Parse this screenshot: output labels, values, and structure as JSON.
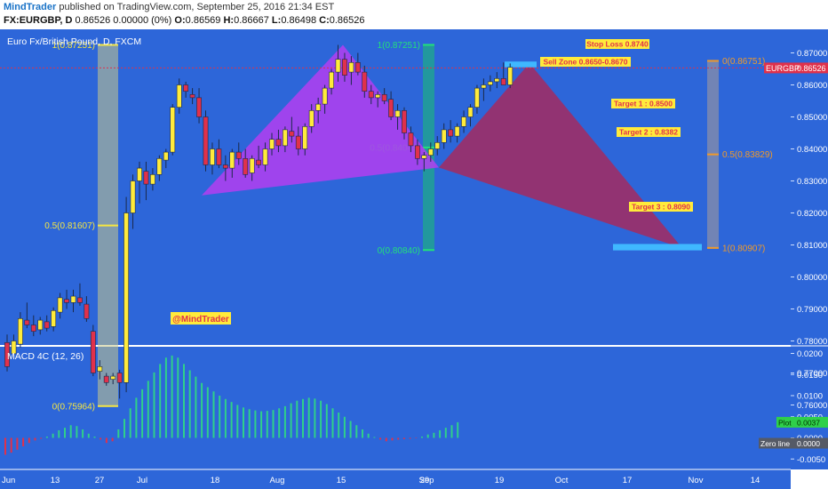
{
  "header": {
    "author": "MindTrader",
    "published": "published on TradingView.com, September 25, 2016 21:34 EST",
    "symbol": "FX:EURGBP, D",
    "quote": "0.86526 0.00000 (0%)",
    "ohlc": {
      "o_label": "O:",
      "o": "0.86569",
      "h_label": "H:",
      "h": "0.86667",
      "l_label": "L:",
      "l": "0.86498",
      "c_label": "C:",
      "c": "0.86526"
    }
  },
  "colors": {
    "background": "#2d66d9",
    "candle_up": "#ffeb3b",
    "candle_down": "#e0314b",
    "fib_left": "#f5e642",
    "fib_mid": "#22e07a",
    "fib_right": "#f09a2a",
    "harmonic_left": "#b43ef0",
    "harmonic_right": "#a52a5f",
    "macd_up": "#2fd08a",
    "macd_down": "#e0314b",
    "label_box": "#ffeb3b",
    "label_text": "#e0314b",
    "price_tag": "#e0314b"
  },
  "icons": [
    "no-icons"
  ],
  "chart_data": [
    {
      "type": "candlestick",
      "title": "Euro Fx/British Pound, D, FXCM",
      "symbol_tag": "EURGBP",
      "last_price": "0.86526",
      "ylim": [
        0.755,
        0.876
      ],
      "y_ticks": [
        "0.87000",
        "0.86000",
        "0.85000",
        "0.84000",
        "0.83000",
        "0.82000",
        "0.81000",
        "0.80000",
        "0.79000",
        "0.78000",
        "0.77000",
        "0.76000"
      ],
      "x_ticks": [
        "Jun",
        "13",
        "27",
        "Jul",
        "18",
        "Aug",
        "15",
        "29",
        "Sep",
        "19",
        "Oct",
        "17",
        "Nov",
        "14"
      ],
      "candles": [
        {
          "o": 0.7795,
          "h": 0.782,
          "l": 0.7705,
          "c": 0.772
        },
        {
          "o": 0.776,
          "h": 0.782,
          "l": 0.7745,
          "c": 0.78
        },
        {
          "o": 0.779,
          "h": 0.789,
          "l": 0.778,
          "c": 0.787
        },
        {
          "o": 0.7865,
          "h": 0.792,
          "l": 0.784,
          "c": 0.785
        },
        {
          "o": 0.785,
          "h": 0.788,
          "l": 0.7815,
          "c": 0.783
        },
        {
          "o": 0.7835,
          "h": 0.7875,
          "l": 0.782,
          "c": 0.7865
        },
        {
          "o": 0.786,
          "h": 0.788,
          "l": 0.783,
          "c": 0.784
        },
        {
          "o": 0.7845,
          "h": 0.7905,
          "l": 0.783,
          "c": 0.7895
        },
        {
          "o": 0.789,
          "h": 0.795,
          "l": 0.787,
          "c": 0.7935
        },
        {
          "o": 0.793,
          "h": 0.796,
          "l": 0.79,
          "c": 0.792
        },
        {
          "o": 0.792,
          "h": 0.796,
          "l": 0.789,
          "c": 0.794
        },
        {
          "o": 0.7935,
          "h": 0.798,
          "l": 0.791,
          "c": 0.792
        },
        {
          "o": 0.7915,
          "h": 0.794,
          "l": 0.786,
          "c": 0.787
        },
        {
          "o": 0.783,
          "h": 0.785,
          "l": 0.769,
          "c": 0.77
        },
        {
          "o": 0.7705,
          "h": 0.774,
          "l": 0.768,
          "c": 0.772
        },
        {
          "o": 0.769,
          "h": 0.77,
          "l": 0.766,
          "c": 0.767
        },
        {
          "o": 0.768,
          "h": 0.77,
          "l": 0.7665,
          "c": 0.769
        },
        {
          "o": 0.77,
          "h": 0.771,
          "l": 0.762,
          "c": 0.767
        },
        {
          "o": 0.767,
          "h": 0.825,
          "l": 0.764,
          "c": 0.82
        },
        {
          "o": 0.82,
          "h": 0.832,
          "l": 0.815,
          "c": 0.83
        },
        {
          "o": 0.83,
          "h": 0.836,
          "l": 0.823,
          "c": 0.834
        },
        {
          "o": 0.833,
          "h": 0.836,
          "l": 0.824,
          "c": 0.829
        },
        {
          "o": 0.829,
          "h": 0.834,
          "l": 0.827,
          "c": 0.832
        },
        {
          "o": 0.832,
          "h": 0.838,
          "l": 0.83,
          "c": 0.837
        },
        {
          "o": 0.8365,
          "h": 0.84,
          "l": 0.834,
          "c": 0.839
        },
        {
          "o": 0.839,
          "h": 0.854,
          "l": 0.838,
          "c": 0.853
        },
        {
          "o": 0.853,
          "h": 0.862,
          "l": 0.851,
          "c": 0.86
        },
        {
          "o": 0.86,
          "h": 0.861,
          "l": 0.856,
          "c": 0.858
        },
        {
          "o": 0.857,
          "h": 0.859,
          "l": 0.854,
          "c": 0.856
        },
        {
          "o": 0.856,
          "h": 0.859,
          "l": 0.848,
          "c": 0.85
        },
        {
          "o": 0.85,
          "h": 0.852,
          "l": 0.833,
          "c": 0.835
        },
        {
          "o": 0.835,
          "h": 0.842,
          "l": 0.832,
          "c": 0.84
        },
        {
          "o": 0.84,
          "h": 0.843,
          "l": 0.834,
          "c": 0.835
        },
        {
          "o": 0.835,
          "h": 0.838,
          "l": 0.83,
          "c": 0.834
        },
        {
          "o": 0.834,
          "h": 0.84,
          "l": 0.831,
          "c": 0.839
        },
        {
          "o": 0.839,
          "h": 0.842,
          "l": 0.835,
          "c": 0.837
        },
        {
          "o": 0.837,
          "h": 0.84,
          "l": 0.831,
          "c": 0.832
        },
        {
          "o": 0.8325,
          "h": 0.838,
          "l": 0.83,
          "c": 0.837
        },
        {
          "o": 0.8365,
          "h": 0.841,
          "l": 0.834,
          "c": 0.835
        },
        {
          "o": 0.835,
          "h": 0.842,
          "l": 0.833,
          "c": 0.84
        },
        {
          "o": 0.84,
          "h": 0.845,
          "l": 0.838,
          "c": 0.843
        },
        {
          "o": 0.843,
          "h": 0.846,
          "l": 0.839,
          "c": 0.841
        },
        {
          "o": 0.841,
          "h": 0.847,
          "l": 0.839,
          "c": 0.846
        },
        {
          "o": 0.8455,
          "h": 0.85,
          "l": 0.842,
          "c": 0.844
        },
        {
          "o": 0.844,
          "h": 0.847,
          "l": 0.838,
          "c": 0.84
        },
        {
          "o": 0.84,
          "h": 0.848,
          "l": 0.838,
          "c": 0.847
        },
        {
          "o": 0.847,
          "h": 0.854,
          "l": 0.845,
          "c": 0.852
        },
        {
          "o": 0.852,
          "h": 0.856,
          "l": 0.848,
          "c": 0.854
        },
        {
          "o": 0.854,
          "h": 0.86,
          "l": 0.851,
          "c": 0.859
        },
        {
          "o": 0.859,
          "h": 0.865,
          "l": 0.857,
          "c": 0.864
        },
        {
          "o": 0.864,
          "h": 0.8725,
          "l": 0.861,
          "c": 0.868
        },
        {
          "o": 0.868,
          "h": 0.87,
          "l": 0.861,
          "c": 0.863
        },
        {
          "o": 0.864,
          "h": 0.869,
          "l": 0.86,
          "c": 0.867
        },
        {
          "o": 0.867,
          "h": 0.87,
          "l": 0.863,
          "c": 0.864
        },
        {
          "o": 0.864,
          "h": 0.866,
          "l": 0.856,
          "c": 0.858
        },
        {
          "o": 0.858,
          "h": 0.86,
          "l": 0.854,
          "c": 0.856
        },
        {
          "o": 0.856,
          "h": 0.858,
          "l": 0.853,
          "c": 0.857
        },
        {
          "o": 0.857,
          "h": 0.859,
          "l": 0.854,
          "c": 0.855
        },
        {
          "o": 0.8555,
          "h": 0.858,
          "l": 0.849,
          "c": 0.85
        },
        {
          "o": 0.85,
          "h": 0.854,
          "l": 0.846,
          "c": 0.852
        },
        {
          "o": 0.852,
          "h": 0.853,
          "l": 0.843,
          "c": 0.845
        },
        {
          "o": 0.845,
          "h": 0.847,
          "l": 0.839,
          "c": 0.841
        },
        {
          "o": 0.841,
          "h": 0.843,
          "l": 0.835,
          "c": 0.837
        },
        {
          "o": 0.837,
          "h": 0.839,
          "l": 0.833,
          "c": 0.838
        },
        {
          "o": 0.838,
          "h": 0.842,
          "l": 0.836,
          "c": 0.84
        },
        {
          "o": 0.84,
          "h": 0.844,
          "l": 0.838,
          "c": 0.842
        },
        {
          "o": 0.842,
          "h": 0.848,
          "l": 0.84,
          "c": 0.846
        },
        {
          "o": 0.846,
          "h": 0.849,
          "l": 0.842,
          "c": 0.844
        },
        {
          "o": 0.844,
          "h": 0.848,
          "l": 0.842,
          "c": 0.847
        },
        {
          "o": 0.847,
          "h": 0.852,
          "l": 0.845,
          "c": 0.85
        },
        {
          "o": 0.85,
          "h": 0.854,
          "l": 0.847,
          "c": 0.853
        },
        {
          "o": 0.853,
          "h": 0.86,
          "l": 0.851,
          "c": 0.859
        },
        {
          "o": 0.859,
          "h": 0.862,
          "l": 0.855,
          "c": 0.86
        },
        {
          "o": 0.86,
          "h": 0.863,
          "l": 0.858,
          "c": 0.861
        },
        {
          "o": 0.861,
          "h": 0.864,
          "l": 0.859,
          "c": 0.862
        },
        {
          "o": 0.862,
          "h": 0.867,
          "l": 0.86,
          "c": 0.86
        },
        {
          "o": 0.86,
          "h": 0.8667,
          "l": 0.859,
          "c": 0.8655
        }
      ],
      "fib_levels": {
        "left": [
          "1(0.87251)",
          "0.5(0.81607)",
          "0(0.75964)"
        ],
        "mid": [
          "1(0.87251)",
          "0.5(0.84045)",
          "0(0.80840)"
        ],
        "right": [
          "0(0.86751)",
          "0.5(0.83829)",
          "1(0.80907)"
        ]
      },
      "annotations": {
        "stop_loss": "Stop Loss 0.8740",
        "sell_zone": "Sell Zone 0.8650-0.8670",
        "target1": "Target 1 : 0.8500",
        "target2": "Target 2 : 0.8382",
        "target3": "Target 3 : 0.8090",
        "watermark": "@MindTrader"
      }
    },
    {
      "type": "bar",
      "title": "MACD 4C (12, 26)",
      "ylim": [
        -0.0065,
        0.021
      ],
      "y_ticks": [
        "0.0200",
        "0.0150",
        "0.0100",
        "0.0050",
        "0.0000",
        "-0.0050"
      ],
      "plot_label": "Plot",
      "plot_value": "0.0037",
      "zero_label": "Zero line",
      "zero_value": "0.0000",
      "values": [
        -0.004,
        -0.0035,
        -0.0028,
        -0.002,
        -0.0012,
        -0.0006,
        -0.0002,
        0.0003,
        0.001,
        0.0018,
        0.0024,
        0.003,
        0.0028,
        0.002,
        0.001,
        0.0003,
        -0.0004,
        -0.0012,
        -0.0008,
        0.002,
        0.0045,
        0.007,
        0.0095,
        0.0115,
        0.0135,
        0.0155,
        0.0175,
        0.019,
        0.0195,
        0.019,
        0.0175,
        0.016,
        0.0145,
        0.013,
        0.012,
        0.011,
        0.01,
        0.0092,
        0.0085,
        0.0078,
        0.0072,
        0.0068,
        0.0065,
        0.0063,
        0.0064,
        0.0066,
        0.007,
        0.0075,
        0.0082,
        0.0088,
        0.0092,
        0.0095,
        0.0093,
        0.0088,
        0.008,
        0.007,
        0.006,
        0.005,
        0.004,
        0.003,
        0.002,
        0.001,
        0.0002,
        -0.0004,
        -0.0008,
        -0.0006,
        -0.0004,
        -0.0003,
        -0.0002,
        -0.0001,
        0.0003,
        0.0008,
        0.0012,
        0.0018,
        0.0024,
        0.003,
        0.0037
      ]
    }
  ]
}
